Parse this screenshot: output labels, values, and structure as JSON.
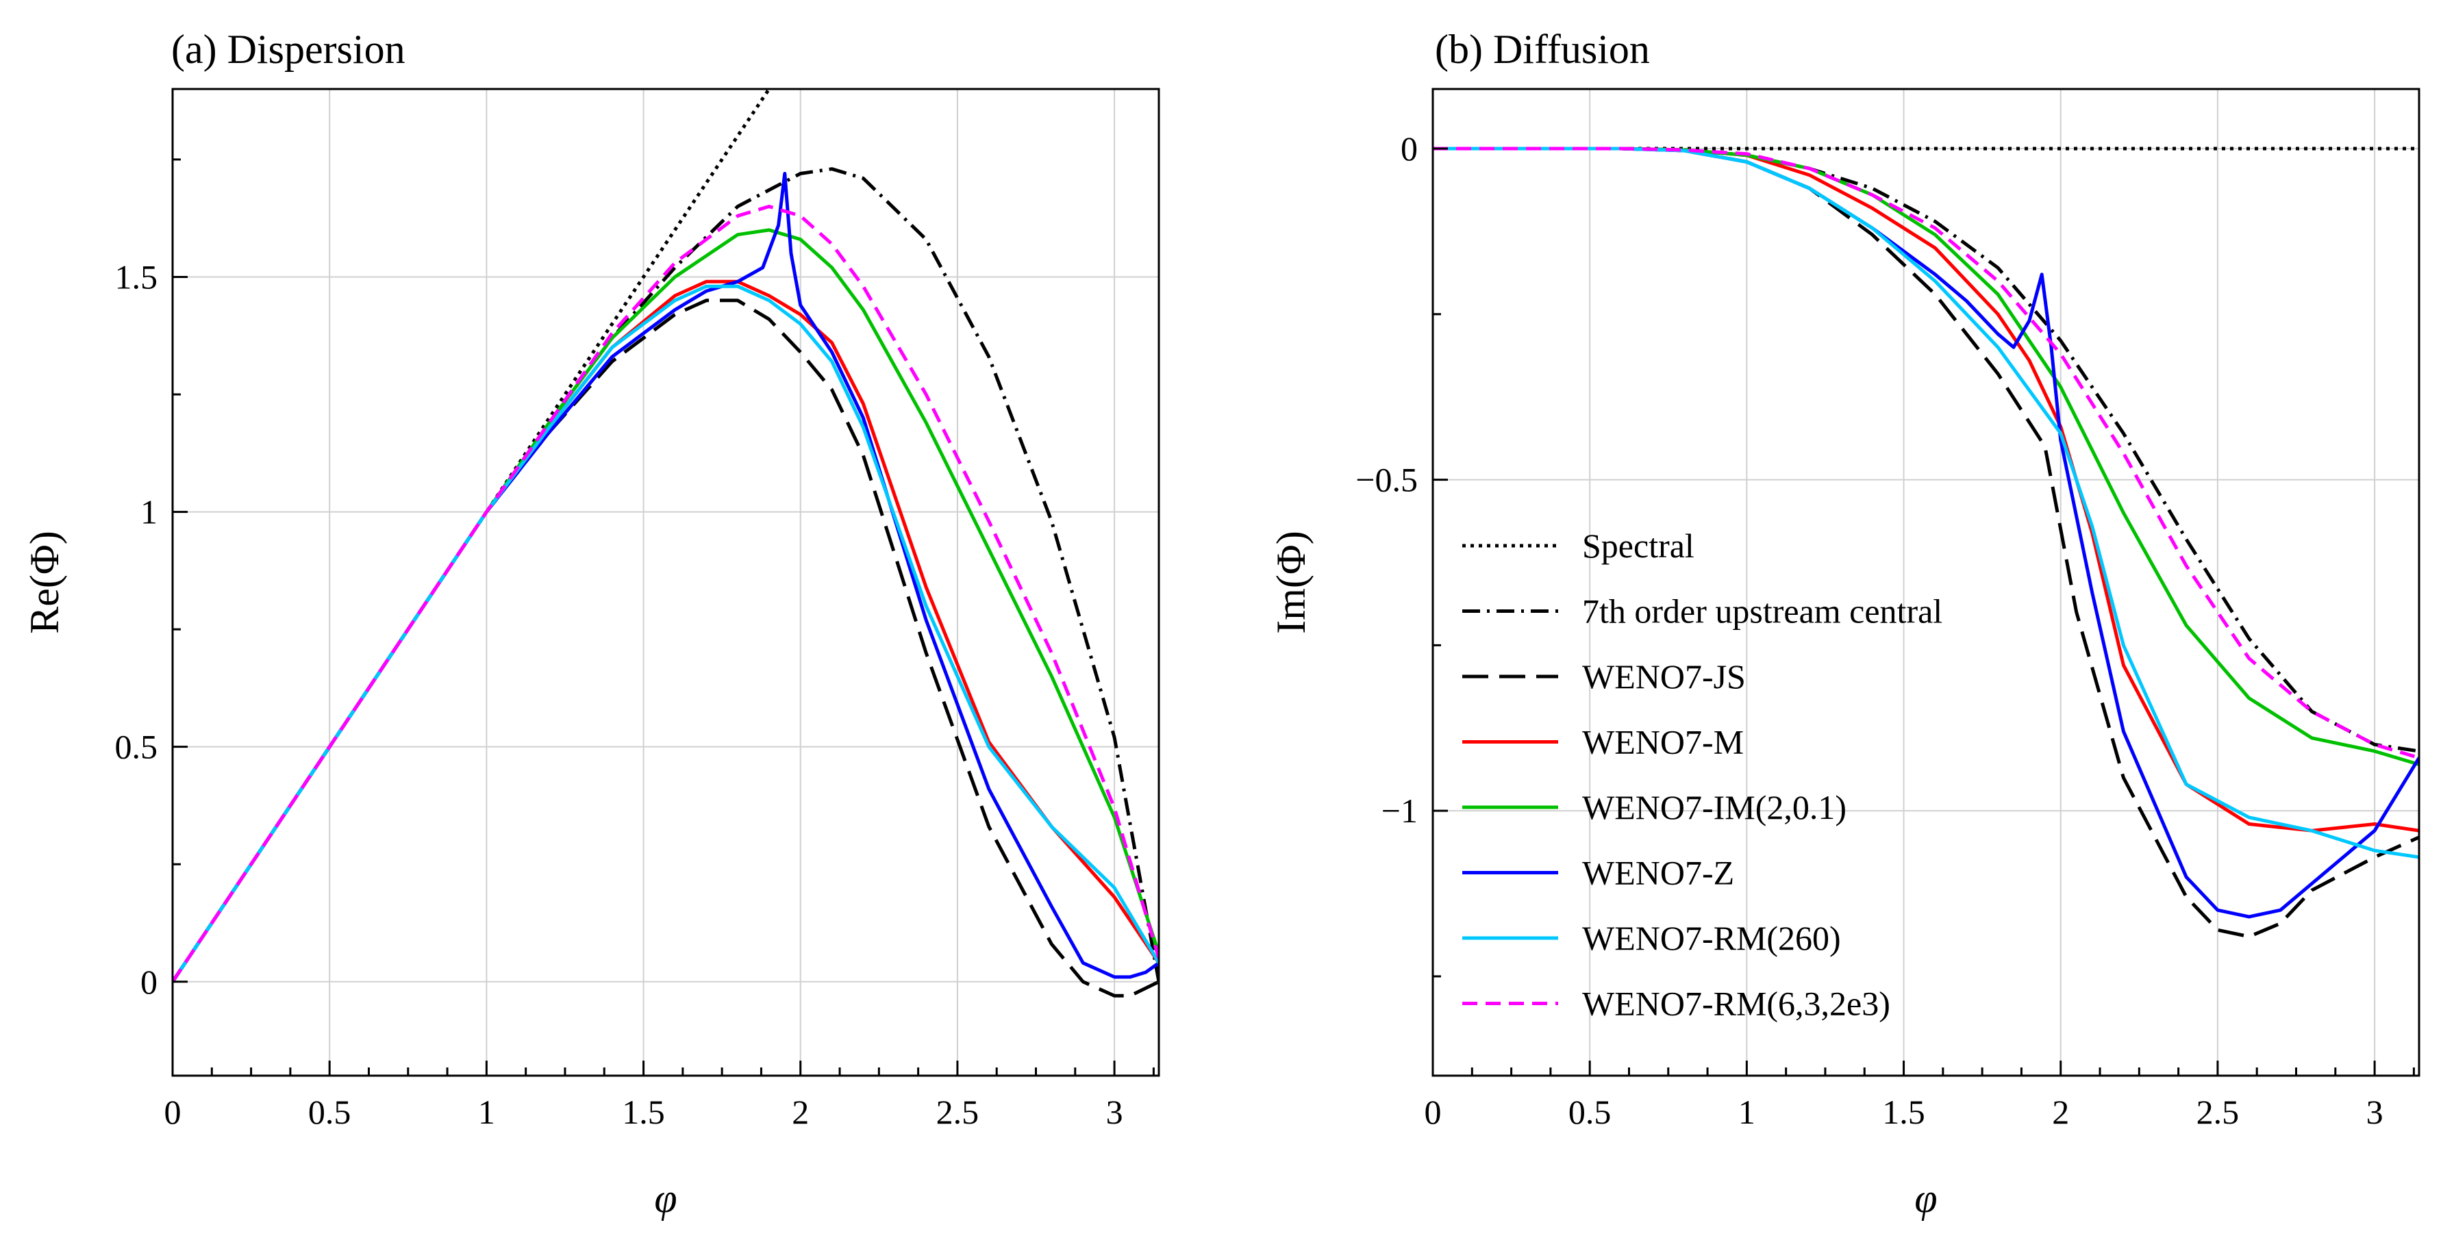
{
  "chart_data": [
    {
      "type": "line",
      "title": "(a) Dispersion",
      "xlabel": "φ",
      "ylabel": "Re(Φ)",
      "xlim": [
        0,
        3.14159
      ],
      "ylim": [
        -0.2,
        1.9
      ],
      "xticks": [
        0,
        0.5,
        1,
        1.5,
        2,
        2.5,
        3
      ],
      "xtick_labels": [
        "0",
        "0.5",
        "1",
        "1.5",
        "2",
        "2.5",
        "3"
      ],
      "yticks": [
        0,
        0.5,
        1,
        1.5
      ],
      "ytick_labels": [
        "0",
        "0.5",
        "1",
        "1.5"
      ],
      "grid": true,
      "legend": "none",
      "series": [
        {
          "name": "Spectral",
          "color": "#000000",
          "dash": "dotted",
          "x": [
            0,
            1.0,
            1.5,
            1.9
          ],
          "y": [
            0,
            1.0,
            1.5,
            1.9
          ]
        },
        {
          "name": "7th order upstream central",
          "color": "#000000",
          "dash": "dashdot",
          "x": [
            0,
            0.5,
            1.0,
            1.2,
            1.4,
            1.6,
            1.8,
            2.0,
            2.1,
            2.2,
            2.4,
            2.6,
            2.8,
            3.0,
            3.14159
          ],
          "y": [
            0,
            0.5,
            1.0,
            1.19,
            1.37,
            1.52,
            1.65,
            1.72,
            1.73,
            1.71,
            1.58,
            1.33,
            0.98,
            0.52,
            0.0
          ]
        },
        {
          "name": "WENO7-JS",
          "color": "#000000",
          "dash": "longdash",
          "x": [
            0,
            0.5,
            1.0,
            1.2,
            1.4,
            1.6,
            1.7,
            1.8,
            1.9,
            2.0,
            2.1,
            2.2,
            2.4,
            2.6,
            2.8,
            2.9,
            3.0,
            3.05,
            3.14159
          ],
          "y": [
            0,
            0.5,
            1.0,
            1.17,
            1.32,
            1.42,
            1.45,
            1.45,
            1.41,
            1.34,
            1.26,
            1.12,
            0.7,
            0.33,
            0.08,
            0.0,
            -0.03,
            -0.03,
            0.0
          ]
        },
        {
          "name": "WENO7-M",
          "color": "#ff0000",
          "dash": "solid",
          "x": [
            0,
            0.5,
            1.0,
            1.2,
            1.4,
            1.6,
            1.7,
            1.8,
            1.9,
            2.0,
            2.1,
            2.2,
            2.4,
            2.6,
            2.8,
            3.0,
            3.14159
          ],
          "y": [
            0,
            0.5,
            1.0,
            1.18,
            1.35,
            1.46,
            1.49,
            1.49,
            1.46,
            1.42,
            1.36,
            1.23,
            0.84,
            0.51,
            0.33,
            0.18,
            0.04
          ]
        },
        {
          "name": "WENO7-IM(2,0.1)",
          "color": "#00c000",
          "dash": "solid",
          "x": [
            0,
            0.5,
            1.0,
            1.2,
            1.4,
            1.6,
            1.8,
            1.9,
            2.0,
            2.1,
            2.2,
            2.4,
            2.6,
            2.8,
            3.0,
            3.14159
          ],
          "y": [
            0,
            0.5,
            1.0,
            1.19,
            1.37,
            1.5,
            1.59,
            1.6,
            1.58,
            1.52,
            1.43,
            1.19,
            0.92,
            0.65,
            0.35,
            0.06
          ]
        },
        {
          "name": "WENO7-Z",
          "color": "#0000ff",
          "dash": "solid",
          "x": [
            0,
            0.5,
            1.0,
            1.2,
            1.4,
            1.6,
            1.7,
            1.8,
            1.88,
            1.93,
            1.95,
            1.97,
            2.0,
            2.1,
            2.2,
            2.4,
            2.6,
            2.8,
            2.9,
            3.0,
            3.05,
            3.1,
            3.14159
          ],
          "y": [
            0,
            0.5,
            1.0,
            1.17,
            1.33,
            1.43,
            1.47,
            1.49,
            1.52,
            1.61,
            1.72,
            1.55,
            1.44,
            1.34,
            1.2,
            0.77,
            0.41,
            0.16,
            0.04,
            0.01,
            0.01,
            0.02,
            0.04
          ]
        },
        {
          "name": "WENO7-RM(260)",
          "color": "#00c8ff",
          "dash": "solid",
          "x": [
            0,
            0.5,
            1.0,
            1.2,
            1.4,
            1.6,
            1.7,
            1.8,
            1.9,
            2.0,
            2.1,
            2.2,
            2.4,
            2.6,
            2.8,
            3.0,
            3.14159
          ],
          "y": [
            0,
            0.5,
            1.0,
            1.18,
            1.35,
            1.45,
            1.48,
            1.48,
            1.45,
            1.4,
            1.32,
            1.18,
            0.8,
            0.5,
            0.33,
            0.2,
            0.04
          ]
        },
        {
          "name": "WENO7-RM(6,3,2e3)",
          "color": "#ff00ff",
          "dash": "dashed",
          "x": [
            0,
            0.5,
            1.0,
            1.2,
            1.4,
            1.6,
            1.8,
            1.9,
            2.0,
            2.1,
            2.2,
            2.4,
            2.6,
            2.8,
            3.0,
            3.14159
          ],
          "y": [
            0,
            0.5,
            1.0,
            1.19,
            1.38,
            1.53,
            1.63,
            1.65,
            1.63,
            1.57,
            1.48,
            1.25,
            0.98,
            0.7,
            0.37,
            0.05
          ]
        }
      ]
    },
    {
      "type": "line",
      "title": "(b) Diffusion",
      "xlabel": "φ",
      "ylabel": "Im(Φ)",
      "xlim": [
        0,
        3.14159
      ],
      "ylim": [
        -1.4,
        0.09
      ],
      "xticks": [
        0,
        0.5,
        1,
        1.5,
        2,
        2.5,
        3
      ],
      "xtick_labels": [
        "0",
        "0.5",
        "1",
        "1.5",
        "2",
        "2.5",
        "3"
      ],
      "yticks": [
        0,
        -0.5,
        -1
      ],
      "ytick_labels": [
        "0",
        "−0.5",
        "−1"
      ],
      "grid": true,
      "legend": "lower-left",
      "series": [
        {
          "name": "Spectral",
          "color": "#000000",
          "dash": "dotted",
          "x": [
            0,
            3.14159
          ],
          "y": [
            0,
            0
          ]
        },
        {
          "name": "7th order upstream central",
          "color": "#000000",
          "dash": "dashdot",
          "x": [
            0,
            0.6,
            0.8,
            1.0,
            1.2,
            1.4,
            1.6,
            1.8,
            2.0,
            2.2,
            2.4,
            2.6,
            2.8,
            3.0,
            3.14159
          ],
          "y": [
            0,
            0,
            -0.002,
            -0.01,
            -0.03,
            -0.06,
            -0.11,
            -0.18,
            -0.29,
            -0.43,
            -0.59,
            -0.74,
            -0.85,
            -0.9,
            -0.91
          ]
        },
        {
          "name": "WENO7-JS",
          "color": "#000000",
          "dash": "longdash",
          "x": [
            0,
            0.6,
            0.8,
            1.0,
            1.2,
            1.4,
            1.6,
            1.8,
            1.95,
            2.05,
            2.2,
            2.4,
            2.5,
            2.6,
            2.7,
            2.8,
            3.0,
            3.14159
          ],
          "y": [
            0,
            0,
            -0.003,
            -0.02,
            -0.06,
            -0.13,
            -0.22,
            -0.34,
            -0.45,
            -0.7,
            -0.95,
            -1.13,
            -1.18,
            -1.19,
            -1.17,
            -1.12,
            -1.07,
            -1.04
          ]
        },
        {
          "name": "WENO7-M",
          "color": "#ff0000",
          "dash": "solid",
          "x": [
            0,
            0.6,
            0.8,
            1.0,
            1.2,
            1.4,
            1.6,
            1.8,
            1.9,
            2.0,
            2.1,
            2.2,
            2.4,
            2.6,
            2.8,
            3.0,
            3.14159
          ],
          "y": [
            0,
            0,
            -0.002,
            -0.01,
            -0.04,
            -0.09,
            -0.15,
            -0.25,
            -0.32,
            -0.42,
            -0.58,
            -0.78,
            -0.96,
            -1.02,
            -1.03,
            -1.02,
            -1.03
          ]
        },
        {
          "name": "WENO7-IM(2,0.1)",
          "color": "#00c000",
          "dash": "solid",
          "x": [
            0,
            0.6,
            0.8,
            1.0,
            1.2,
            1.4,
            1.6,
            1.8,
            2.0,
            2.2,
            2.4,
            2.6,
            2.8,
            3.0,
            3.14159
          ],
          "y": [
            0,
            0,
            -0.002,
            -0.01,
            -0.03,
            -0.07,
            -0.13,
            -0.22,
            -0.36,
            -0.55,
            -0.72,
            -0.83,
            -0.89,
            -0.91,
            -0.93
          ]
        },
        {
          "name": "WENO7-Z",
          "color": "#0000ff",
          "dash": "solid",
          "x": [
            0,
            0.6,
            0.8,
            1.0,
            1.2,
            1.4,
            1.6,
            1.7,
            1.8,
            1.85,
            1.9,
            1.94,
            1.97,
            2.0,
            2.1,
            2.2,
            2.4,
            2.5,
            2.6,
            2.7,
            2.8,
            3.0,
            3.14159
          ],
          "y": [
            0,
            0,
            -0.003,
            -0.02,
            -0.06,
            -0.12,
            -0.19,
            -0.23,
            -0.28,
            -0.3,
            -0.26,
            -0.19,
            -0.3,
            -0.44,
            -0.67,
            -0.88,
            -1.1,
            -1.15,
            -1.16,
            -1.15,
            -1.11,
            -1.03,
            -0.92
          ]
        },
        {
          "name": "WENO7-RM(260)",
          "color": "#00c8ff",
          "dash": "solid",
          "x": [
            0,
            0.6,
            0.8,
            1.0,
            1.2,
            1.4,
            1.6,
            1.8,
            2.0,
            2.1,
            2.2,
            2.4,
            2.6,
            2.8,
            3.0,
            3.14159
          ],
          "y": [
            0,
            0,
            -0.003,
            -0.02,
            -0.06,
            -0.12,
            -0.2,
            -0.3,
            -0.43,
            -0.57,
            -0.75,
            -0.96,
            -1.01,
            -1.03,
            -1.06,
            -1.07
          ]
        },
        {
          "name": "WENO7-RM(6,3,2e3)",
          "color": "#ff00ff",
          "dash": "dashed",
          "x": [
            0,
            0.6,
            0.8,
            1.0,
            1.2,
            1.4,
            1.6,
            1.8,
            2.0,
            2.2,
            2.4,
            2.6,
            2.8,
            3.0,
            3.14159
          ],
          "y": [
            0,
            0,
            -0.002,
            -0.008,
            -0.03,
            -0.07,
            -0.12,
            -0.2,
            -0.31,
            -0.46,
            -0.63,
            -0.77,
            -0.85,
            -0.9,
            -0.92
          ]
        }
      ]
    }
  ]
}
